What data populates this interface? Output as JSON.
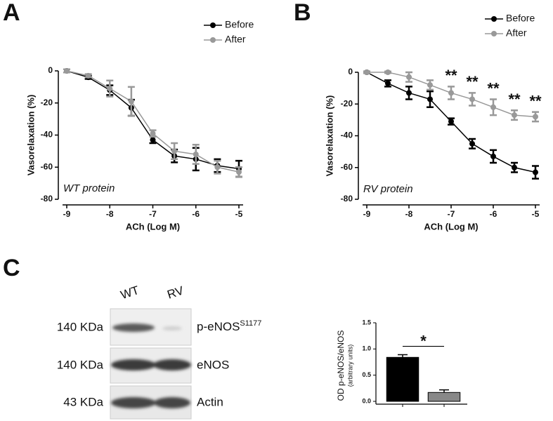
{
  "chart_data": [
    {
      "type": "line",
      "panel": "A",
      "annotation": "WT protein",
      "x_label": "ACh (Log M)",
      "y_label": "Vasorelaxation (%)",
      "x": [
        -9,
        -8.5,
        -8,
        -7.5,
        -7,
        -6.5,
        -6,
        -5.5,
        -5
      ],
      "series": [
        {
          "name": "Before",
          "color": "#000000",
          "values": [
            0,
            -4,
            -12,
            -23,
            -43,
            -53,
            -55,
            -59,
            -61
          ],
          "errors": [
            1,
            1,
            3,
            5,
            2,
            4,
            7,
            4,
            5
          ]
        },
        {
          "name": "After",
          "color": "#999999",
          "values": [
            0,
            -3,
            -11,
            -19,
            -39,
            -50,
            -52,
            -60,
            -63
          ],
          "errors": [
            1,
            1,
            5,
            9,
            2,
            5,
            6,
            4,
            3
          ]
        }
      ],
      "xlim": [
        -9,
        -5
      ],
      "xticks": [
        -9,
        -8,
        -7,
        -6,
        -5
      ],
      "ylim": [
        -80,
        0
      ],
      "yticks": [
        0,
        -20,
        -40,
        -60,
        -80
      ]
    },
    {
      "type": "line",
      "panel": "B",
      "annotation": "RV protein",
      "x_label": "ACh (Log M)",
      "y_label": "Vasorelaxation (%)",
      "x": [
        -9,
        -8.5,
        -8,
        -7.5,
        -7,
        -6.5,
        -6,
        -5.5,
        -5
      ],
      "series": [
        {
          "name": "Before",
          "color": "#000000",
          "values": [
            0,
            -7,
            -13,
            -17,
            -31,
            -45,
            -53,
            -60,
            -63
          ],
          "errors": [
            0.5,
            2,
            4,
            5,
            2,
            3,
            4,
            3,
            4
          ]
        },
        {
          "name": "After",
          "color": "#999999",
          "values": [
            0,
            0,
            -3,
            -8,
            -13,
            -17,
            -22,
            -27,
            -28
          ],
          "errors": [
            0.5,
            0.5,
            3,
            3,
            4,
            4,
            5,
            3,
            3
          ]
        }
      ],
      "significance": [
        null,
        null,
        null,
        null,
        "**",
        "**",
        "**",
        "**",
        "**"
      ],
      "xlim": [
        -9,
        -5
      ],
      "xticks": [
        -9,
        -8,
        -7,
        -6,
        -5
      ],
      "ylim": [
        -80,
        0
      ],
      "yticks": [
        0,
        -20,
        -40,
        -60,
        -80
      ]
    },
    {
      "type": "bar",
      "y_label": "OD p-eNOS/eNOS",
      "y_sublabel": "(arbitrary units)",
      "categories": [
        null,
        null
      ],
      "values": [
        0.84,
        0.17
      ],
      "errors": [
        0.05,
        0.05
      ],
      "colors": [
        "#000000",
        "#888888"
      ],
      "significance": "*",
      "ylim": [
        0,
        1.5
      ],
      "yticks": [
        {
          "value": 0,
          "label": "0.0"
        },
        {
          "value": 0.5,
          "label": "0.5"
        },
        {
          "value": 1,
          "label": "1.0"
        },
        {
          "value": 1.5,
          "label": "1.5"
        }
      ]
    }
  ],
  "blot": {
    "panel": "C",
    "lanes": [
      "WT",
      "RV"
    ],
    "rows": [
      {
        "size": "140 KDa",
        "label": "p-eNOS",
        "superscript": "S1177"
      },
      {
        "size": "140 KDa",
        "label": "eNOS"
      },
      {
        "size": "43 KDa",
        "label": "Actin"
      }
    ]
  }
}
